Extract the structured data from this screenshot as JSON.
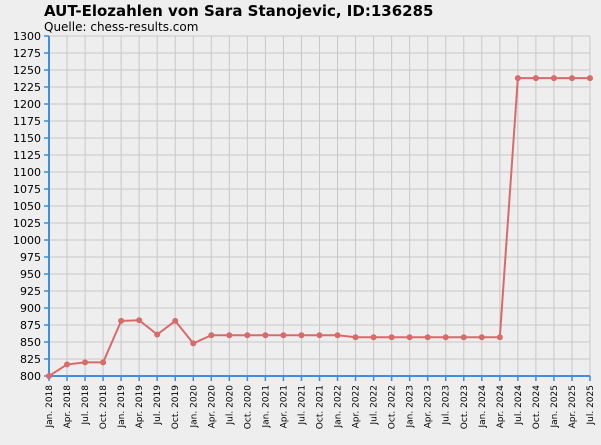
{
  "chart_data": {
    "type": "line",
    "title": "AUT-Elozahlen von Sara Stanojevic, ID:136285",
    "subtitle": "Quelle: chess-results.com",
    "xlabel": "",
    "ylabel": "",
    "ylim": [
      800,
      1300
    ],
    "y_ticks": [
      800,
      825,
      850,
      875,
      900,
      925,
      950,
      975,
      1000,
      1025,
      1050,
      1075,
      1100,
      1125,
      1150,
      1175,
      1200,
      1225,
      1250,
      1275,
      1300
    ],
    "grid": true,
    "categories": [
      "Jan. 2018",
      "Apr. 2018",
      "Jul. 2018",
      "Oct. 2018",
      "Jan. 2019",
      "Apr. 2019",
      "Jul. 2019",
      "Oct. 2019",
      "Jan. 2020",
      "Apr. 2020",
      "Jul. 2020",
      "Oct. 2020",
      "Jan. 2021",
      "Apr. 2021",
      "Jul. 2021",
      "Oct. 2021",
      "Jan. 2022",
      "Apr. 2022",
      "Jul. 2022",
      "Oct. 2022",
      "Jan. 2023",
      "Apr. 2023",
      "Jul. 2023",
      "Oct. 2023",
      "Jan. 2024",
      "Apr. 2024",
      "Jul. 2024",
      "Oct. 2024",
      "Jan. 2025",
      "Apr. 2025",
      "Jul. 2025"
    ],
    "series": [
      {
        "values": [
          800,
          817,
          820,
          820,
          881,
          882,
          861,
          881,
          848,
          860,
          860,
          860,
          860,
          860,
          860,
          860,
          860,
          857,
          857,
          857,
          857,
          857,
          857,
          857,
          857,
          857,
          1238,
          1238,
          1238,
          1238,
          1238
        ]
      }
    ],
    "colors": {
      "line": "#d96a6a",
      "axis": "#3d8fe0",
      "grid": "#c8c8c8",
      "background": "#eeeeee"
    }
  }
}
